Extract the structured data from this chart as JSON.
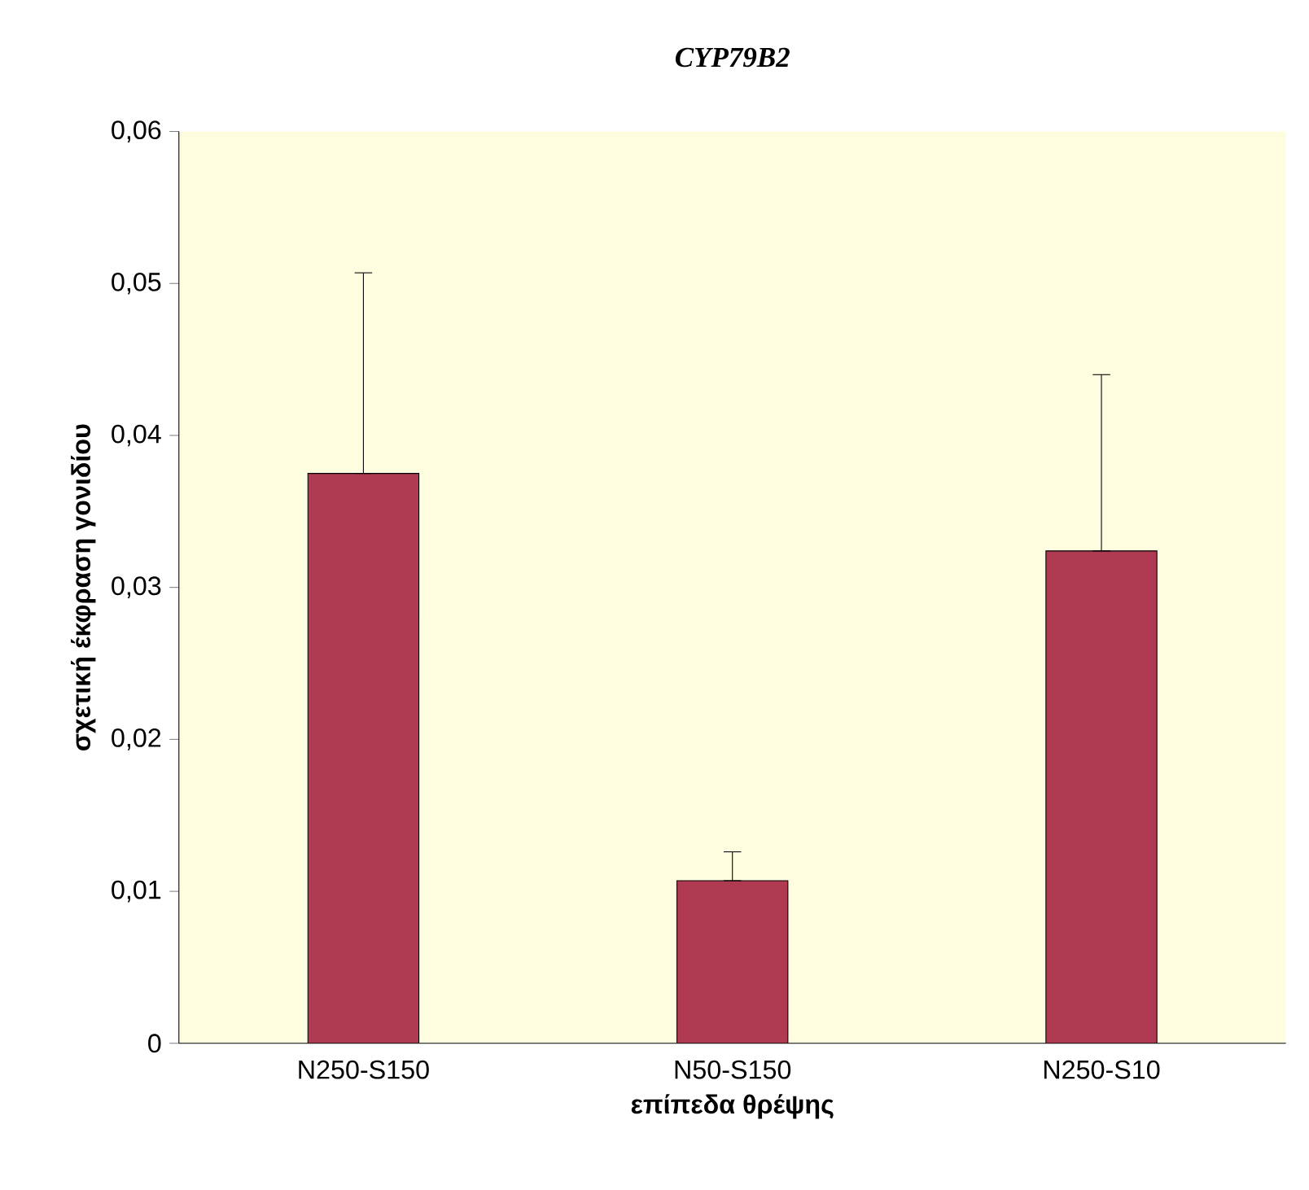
{
  "chart_data": {
    "type": "bar",
    "title": "CYP79B2",
    "xlabel": "επίπεδα θρέψης",
    "ylabel": "σχετική έκφραση γονιδίου",
    "categories": [
      "N250-S150",
      "N50-S150",
      "N250-S10"
    ],
    "values": [
      0.0375,
      0.0107,
      0.0324
    ],
    "errors": [
      [
        0.0375,
        0.0507
      ],
      [
        0.0107,
        0.0126
      ],
      [
        0.0324,
        0.044
      ]
    ],
    "color": "#b03a52",
    "ylim": [
      0,
      0.06
    ],
    "yticks": [
      {
        "value": 0,
        "label": "0"
      },
      {
        "value": 0.01,
        "label": "0,01"
      },
      {
        "value": 0.02,
        "label": "0,02"
      },
      {
        "value": 0.03,
        "label": "0,03"
      },
      {
        "value": 0.04,
        "label": "0,04"
      },
      {
        "value": 0.05,
        "label": "0,05"
      },
      {
        "value": 0.06,
        "label": "0,06"
      }
    ],
    "grid": false
  }
}
